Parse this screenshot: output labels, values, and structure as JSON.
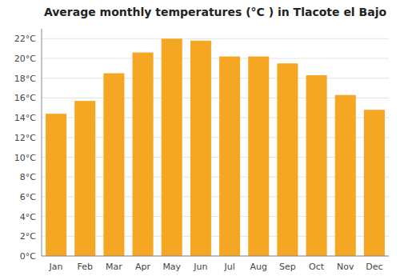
{
  "chart_data": {
    "type": "bar",
    "title": "Average monthly temperatures (°C ) in Tlacote el Bajo",
    "categories": [
      "Jan",
      "Feb",
      "Mar",
      "Apr",
      "May",
      "Jun",
      "Jul",
      "Aug",
      "Sep",
      "Oct",
      "Nov",
      "Dec"
    ],
    "values": [
      14.4,
      15.7,
      18.5,
      20.6,
      22.0,
      21.8,
      20.2,
      20.2,
      19.5,
      18.3,
      16.3,
      14.8
    ],
    "color": "#F5A623",
    "ylim": [
      0,
      23
    ],
    "yticks": [
      {
        "value": 0,
        "label": "0°C"
      },
      {
        "value": 2,
        "label": "2°C"
      },
      {
        "value": 4,
        "label": "4°C"
      },
      {
        "value": 6,
        "label": "6°C"
      },
      {
        "value": 8,
        "label": "8°C"
      },
      {
        "value": 10,
        "label": "10°C"
      },
      {
        "value": 12,
        "label": "12°C"
      },
      {
        "value": 14,
        "label": "14°C"
      },
      {
        "value": 16,
        "label": "16°C"
      },
      {
        "value": 18,
        "label": "18°C"
      },
      {
        "value": 20,
        "label": "20°C"
      },
      {
        "value": 22,
        "label": "22°C"
      }
    ],
    "grid": true
  }
}
